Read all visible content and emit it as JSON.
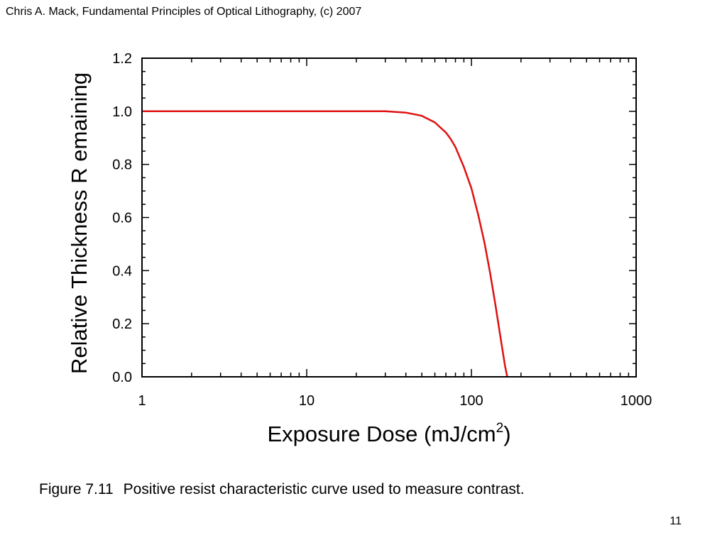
{
  "header": {
    "citation": "Chris A. Mack, Fundamental Principles of Optical Lithography, (c) 2007"
  },
  "caption": {
    "label": "Figure 7.11",
    "text": "Positive resist characteristic curve used to measure contrast."
  },
  "page_number": "11",
  "chart_data": {
    "type": "line",
    "title": "",
    "xlabel": "Exposure Dose (mJ/cm",
    "xlabel_superscript": "2",
    "xlabel_suffix": ")",
    "ylabel": "Relative Thickness R  emaining",
    "x_scale": "log",
    "xlim": [
      1,
      1000
    ],
    "ylim": [
      0.0,
      1.2
    ],
    "x_ticks": [
      1,
      10,
      100,
      1000
    ],
    "x_tick_labels": [
      "1",
      "10",
      "100",
      "1000"
    ],
    "y_ticks": [
      0.0,
      0.2,
      0.4,
      0.6,
      0.8,
      1.0,
      1.2
    ],
    "y_tick_labels": [
      "0.0",
      "0.2",
      "0.4",
      "0.6",
      "0.8",
      "1.0",
      "1.2"
    ],
    "grid": false,
    "legend": "none",
    "series": [
      {
        "color": "#e01010",
        "x": [
          1,
          10,
          30,
          40,
          50,
          60,
          70,
          75,
          80,
          90,
          100,
          110,
          120,
          130,
          140,
          150,
          160,
          165
        ],
        "y": [
          1.0,
          1.0,
          1.0,
          0.995,
          0.983,
          0.958,
          0.92,
          0.895,
          0.865,
          0.79,
          0.71,
          0.61,
          0.505,
          0.39,
          0.27,
          0.15,
          0.04,
          0.0
        ]
      }
    ]
  }
}
